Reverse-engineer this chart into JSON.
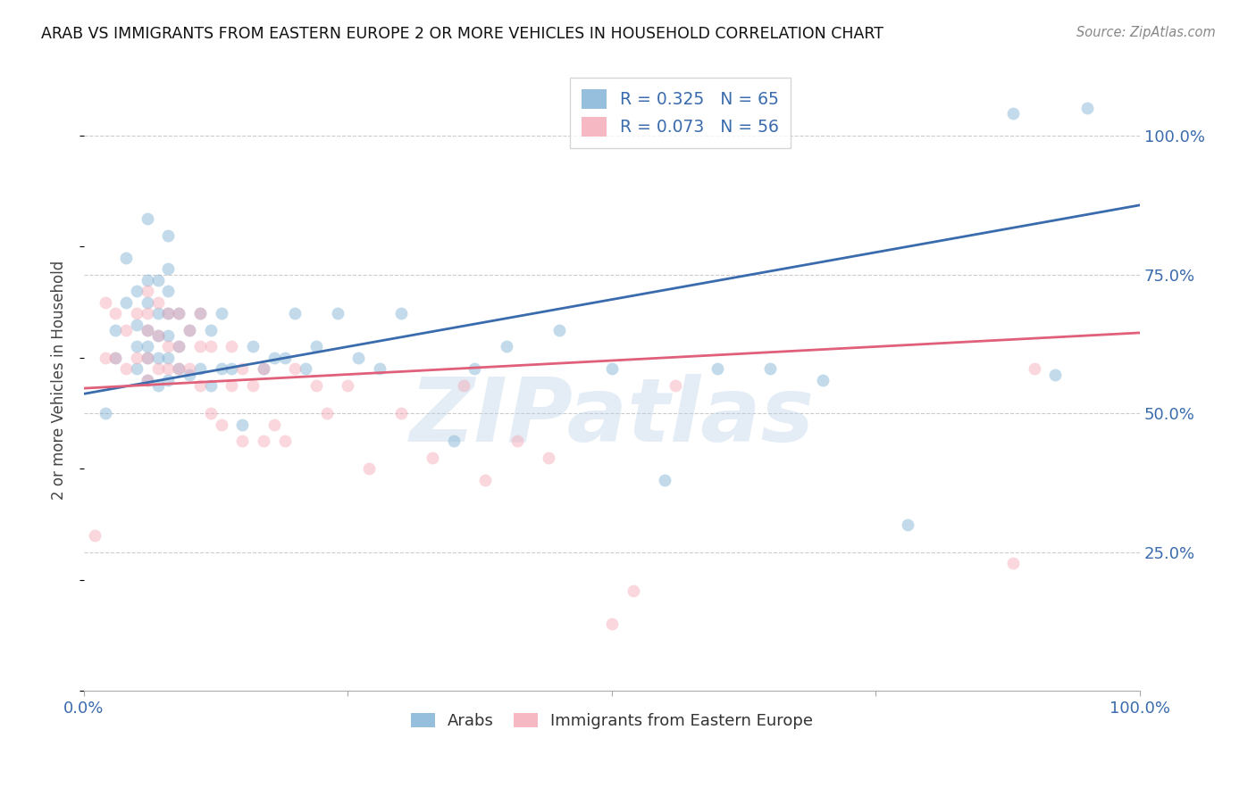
{
  "title": "ARAB VS IMMIGRANTS FROM EASTERN EUROPE 2 OR MORE VEHICLES IN HOUSEHOLD CORRELATION CHART",
  "source": "Source: ZipAtlas.com",
  "ylabel": "2 or more Vehicles in Household",
  "ytick_labels": [
    "25.0%",
    "50.0%",
    "75.0%",
    "100.0%"
  ],
  "ytick_values": [
    0.25,
    0.5,
    0.75,
    1.0
  ],
  "xlim": [
    0.0,
    1.0
  ],
  "ylim": [
    0.0,
    1.12
  ],
  "blue_color": "#7BAFD4",
  "pink_color": "#F4A7B5",
  "blue_line_color": "#3A6BAD",
  "pink_line_color": "#E0607A",
  "blue_line_y0": 0.535,
  "blue_line_y1": 0.875,
  "pink_line_y0": 0.545,
  "pink_line_y1": 0.645,
  "blue_x": [
    0.02,
    0.03,
    0.03,
    0.04,
    0.04,
    0.05,
    0.05,
    0.05,
    0.05,
    0.06,
    0.06,
    0.06,
    0.06,
    0.06,
    0.06,
    0.06,
    0.07,
    0.07,
    0.07,
    0.07,
    0.07,
    0.08,
    0.08,
    0.08,
    0.08,
    0.08,
    0.08,
    0.08,
    0.09,
    0.09,
    0.09,
    0.1,
    0.1,
    0.11,
    0.11,
    0.12,
    0.12,
    0.13,
    0.13,
    0.14,
    0.15,
    0.16,
    0.17,
    0.18,
    0.19,
    0.2,
    0.21,
    0.22,
    0.24,
    0.26,
    0.28,
    0.3,
    0.35,
    0.37,
    0.4,
    0.45,
    0.5,
    0.55,
    0.6,
    0.65,
    0.7,
    0.78,
    0.88,
    0.92,
    0.95
  ],
  "blue_y": [
    0.5,
    0.6,
    0.65,
    0.7,
    0.78,
    0.58,
    0.62,
    0.66,
    0.72,
    0.56,
    0.6,
    0.62,
    0.65,
    0.7,
    0.74,
    0.85,
    0.55,
    0.6,
    0.64,
    0.68,
    0.74,
    0.56,
    0.6,
    0.64,
    0.68,
    0.72,
    0.76,
    0.82,
    0.58,
    0.62,
    0.68,
    0.57,
    0.65,
    0.58,
    0.68,
    0.55,
    0.65,
    0.58,
    0.68,
    0.58,
    0.48,
    0.62,
    0.58,
    0.6,
    0.6,
    0.68,
    0.58,
    0.62,
    0.68,
    0.6,
    0.58,
    0.68,
    0.45,
    0.58,
    0.62,
    0.65,
    0.58,
    0.38,
    0.58,
    0.58,
    0.56,
    0.3,
    1.04,
    0.57,
    1.05
  ],
  "pink_x": [
    0.01,
    0.02,
    0.02,
    0.03,
    0.03,
    0.04,
    0.04,
    0.05,
    0.05,
    0.06,
    0.06,
    0.06,
    0.06,
    0.06,
    0.07,
    0.07,
    0.07,
    0.08,
    0.08,
    0.08,
    0.09,
    0.09,
    0.09,
    0.1,
    0.1,
    0.11,
    0.11,
    0.11,
    0.12,
    0.12,
    0.13,
    0.14,
    0.14,
    0.15,
    0.15,
    0.16,
    0.17,
    0.17,
    0.18,
    0.19,
    0.2,
    0.22,
    0.23,
    0.25,
    0.27,
    0.3,
    0.33,
    0.36,
    0.38,
    0.41,
    0.44,
    0.5,
    0.52,
    0.56,
    0.88,
    0.9
  ],
  "pink_y": [
    0.28,
    0.6,
    0.7,
    0.6,
    0.68,
    0.58,
    0.65,
    0.6,
    0.68,
    0.56,
    0.6,
    0.65,
    0.68,
    0.72,
    0.58,
    0.64,
    0.7,
    0.58,
    0.62,
    0.68,
    0.58,
    0.62,
    0.68,
    0.58,
    0.65,
    0.55,
    0.62,
    0.68,
    0.5,
    0.62,
    0.48,
    0.55,
    0.62,
    0.45,
    0.58,
    0.55,
    0.45,
    0.58,
    0.48,
    0.45,
    0.58,
    0.55,
    0.5,
    0.55,
    0.4,
    0.5,
    0.42,
    0.55,
    0.38,
    0.45,
    0.42,
    0.12,
    0.18,
    0.55,
    0.23,
    0.58
  ],
  "watermark_text": "ZIPatlas",
  "marker_size": 100,
  "marker_alpha": 0.45,
  "line_width": 2.0
}
